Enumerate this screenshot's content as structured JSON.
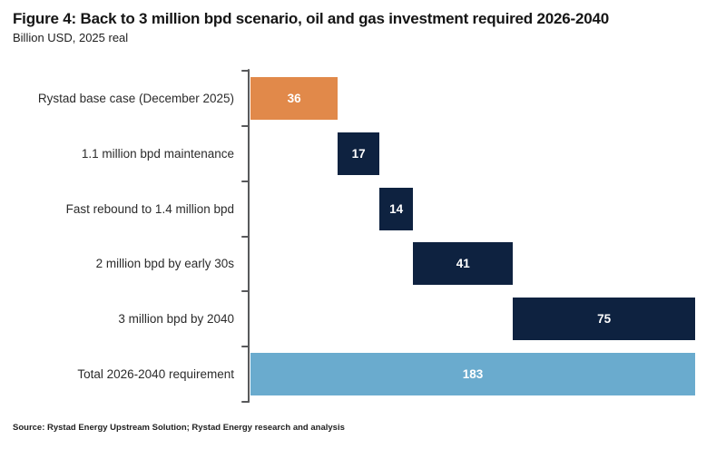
{
  "chart_data": {
    "type": "bar",
    "variant": "horizontal-waterfall",
    "title": "Figure 4: Back to 3 million bpd scenario, oil and gas investment required 2026-2040",
    "subtitle": "Billion USD, 2025 real",
    "source": "Source: Rystad Energy Upstream Solution; Rystad Energy research and analysis",
    "xlabel": "",
    "ylabel": "",
    "xlim": [
      0,
      183
    ],
    "grid": false,
    "legend_position": "none",
    "categories": [
      "Rystad base case (December 2025)",
      "1.1 million bpd maintenance",
      "Fast rebound to 1.4 million bpd",
      "2 million bpd by early 30s",
      "3 million bpd by 2040",
      "Total 2026-2040 requirement"
    ],
    "values": [
      36,
      17,
      14,
      41,
      75,
      183
    ],
    "bar_starts": [
      0,
      36,
      53,
      67,
      108,
      0
    ],
    "is_total": [
      false,
      false,
      false,
      false,
      false,
      true
    ],
    "bar_colors": [
      "#E1894A",
      "#0E2240",
      "#0E2240",
      "#0E2240",
      "#0E2240",
      "#6AABCE"
    ],
    "colors": {
      "accent_orange": "#E1894A",
      "navy": "#0E2240",
      "light_blue": "#6AABCE",
      "axis": "#58595B",
      "title_text": "#151515",
      "label_text": "#2B2B2B",
      "value_label": "#FFFFFF"
    }
  }
}
